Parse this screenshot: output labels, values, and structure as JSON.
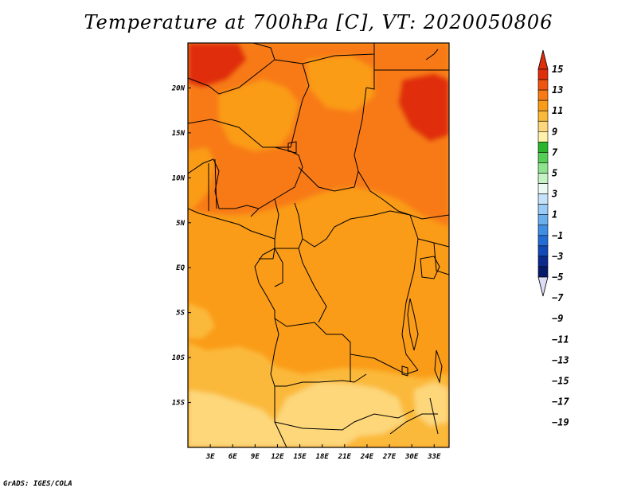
{
  "title": "Temperature at 700hPa [C], VT: 2020050806",
  "credit": "GrADS: IGES/COLA",
  "map": {
    "lon_range": [
      0,
      35
    ],
    "lat_range": [
      -20,
      25
    ],
    "x_ticks": [
      {
        "lon": 3,
        "label": "3E"
      },
      {
        "lon": 6,
        "label": "6E"
      },
      {
        "lon": 9,
        "label": "9E"
      },
      {
        "lon": 12,
        "label": "12E"
      },
      {
        "lon": 15,
        "label": "15E"
      },
      {
        "lon": 18,
        "label": "18E"
      },
      {
        "lon": 21,
        "label": "21E"
      },
      {
        "lon": 24,
        "label": "24E"
      },
      {
        "lon": 27,
        "label": "27E"
      },
      {
        "lon": 30,
        "label": "30E"
      },
      {
        "lon": 33,
        "label": "33E"
      }
    ],
    "y_ticks": [
      {
        "lat": 20,
        "label": "20N"
      },
      {
        "lat": 15,
        "label": "15N"
      },
      {
        "lat": 10,
        "label": "10N"
      },
      {
        "lat": 5,
        "label": "5N"
      },
      {
        "lat": 0,
        "label": "EQ"
      },
      {
        "lat": -5,
        "label": "5S"
      },
      {
        "lat": -10,
        "label": "10S"
      },
      {
        "lat": -15,
        "label": "15S"
      }
    ]
  },
  "colorbar": {
    "levels": [
      "15",
      "13",
      "11",
      "9",
      "7",
      "5",
      "3",
      "1",
      "−1",
      "−3",
      "−5",
      "−7",
      "−9",
      "−11",
      "−13",
      "−15",
      "−17",
      "−19"
    ],
    "colors": [
      "#e02d0c",
      "#f05510",
      "#f87a14",
      "#fa9c18",
      "#fbb93a",
      "#fdd77a",
      "#fff0aa",
      "#2bb52b",
      "#56cf56",
      "#8ee38e",
      "#c4f2c4",
      "#eafaf2",
      "#c4e3fb",
      "#98cbf6",
      "#6aaeee",
      "#3f8ee4",
      "#226cd6",
      "#1249b8",
      "#0a2a8e",
      "#061a6a"
    ],
    "top_color": "#e02d0c",
    "bottom_color": "#dcdcf4"
  }
}
